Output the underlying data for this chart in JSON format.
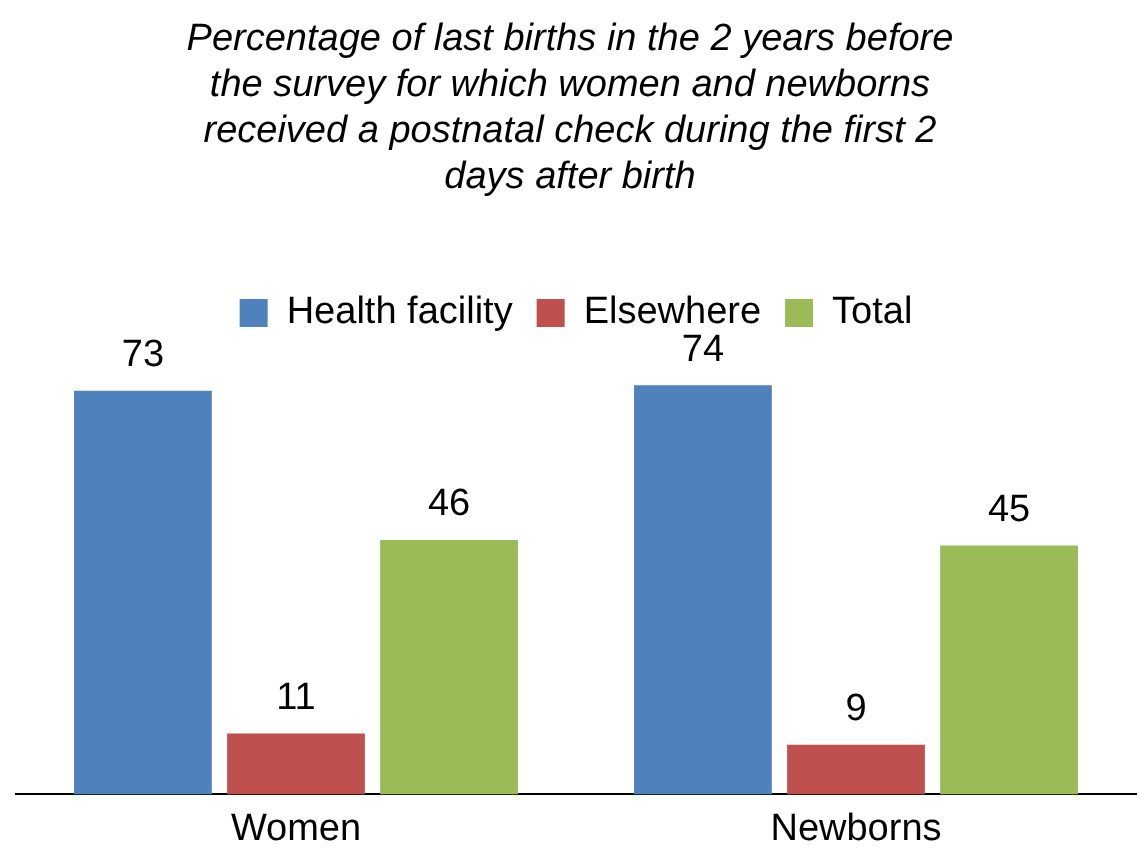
{
  "chart_data": {
    "type": "bar",
    "title": "Percentage of last births in the 2 years before the survey for which women and newborns received a postnatal check during the first 2 days after birth",
    "categories": [
      "Women",
      "Newborns"
    ],
    "series": [
      {
        "name": "Health facility",
        "color": "#4f81bd",
        "values": [
          73,
          74
        ]
      },
      {
        "name": "Elsewhere",
        "color": "#c0504d",
        "values": [
          11,
          9
        ]
      },
      {
        "name": "Total",
        "color": "#9bbb59",
        "values": [
          46,
          45
        ]
      }
    ],
    "data_labels": true,
    "legend": "top",
    "grid": false
  }
}
